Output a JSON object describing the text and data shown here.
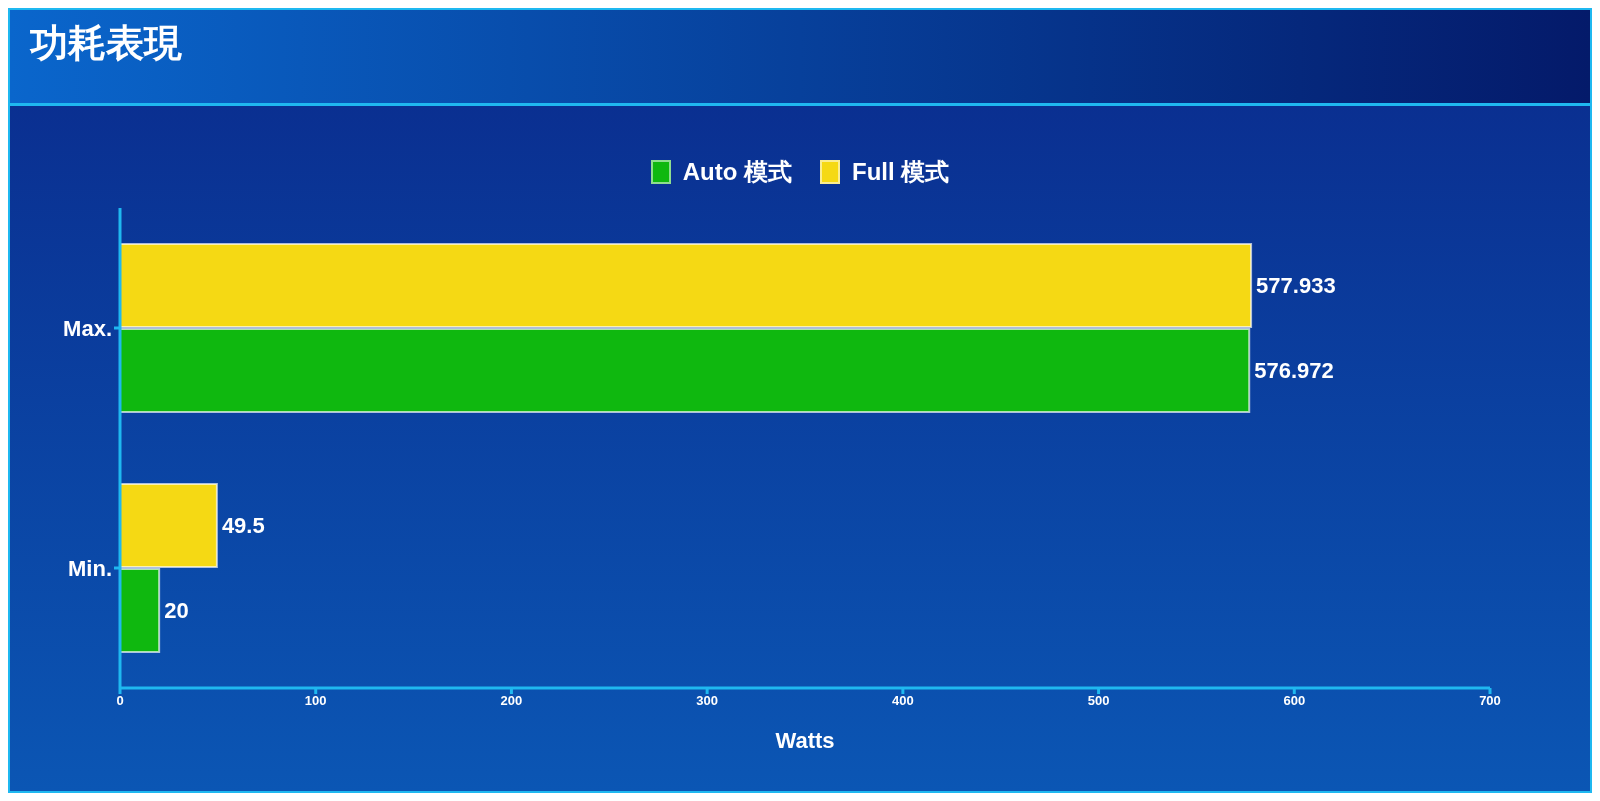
{
  "chart_data": {
    "type": "bar",
    "orientation": "horizontal",
    "title": "功耗表現",
    "categories": [
      "Max.",
      "Min."
    ],
    "series": [
      {
        "name": "Auto 模式",
        "color": "#0fb80f",
        "values": [
          576.972,
          20
        ]
      },
      {
        "name": "Full 模式",
        "color": "#f5d914",
        "values": [
          577.933,
          49.5
        ]
      }
    ],
    "xlim": [
      0,
      700
    ],
    "xticks": [
      0,
      100,
      200,
      300,
      400,
      500,
      600,
      700
    ],
    "xlabel": "Watts",
    "data_labels": true,
    "legend": "top"
  }
}
